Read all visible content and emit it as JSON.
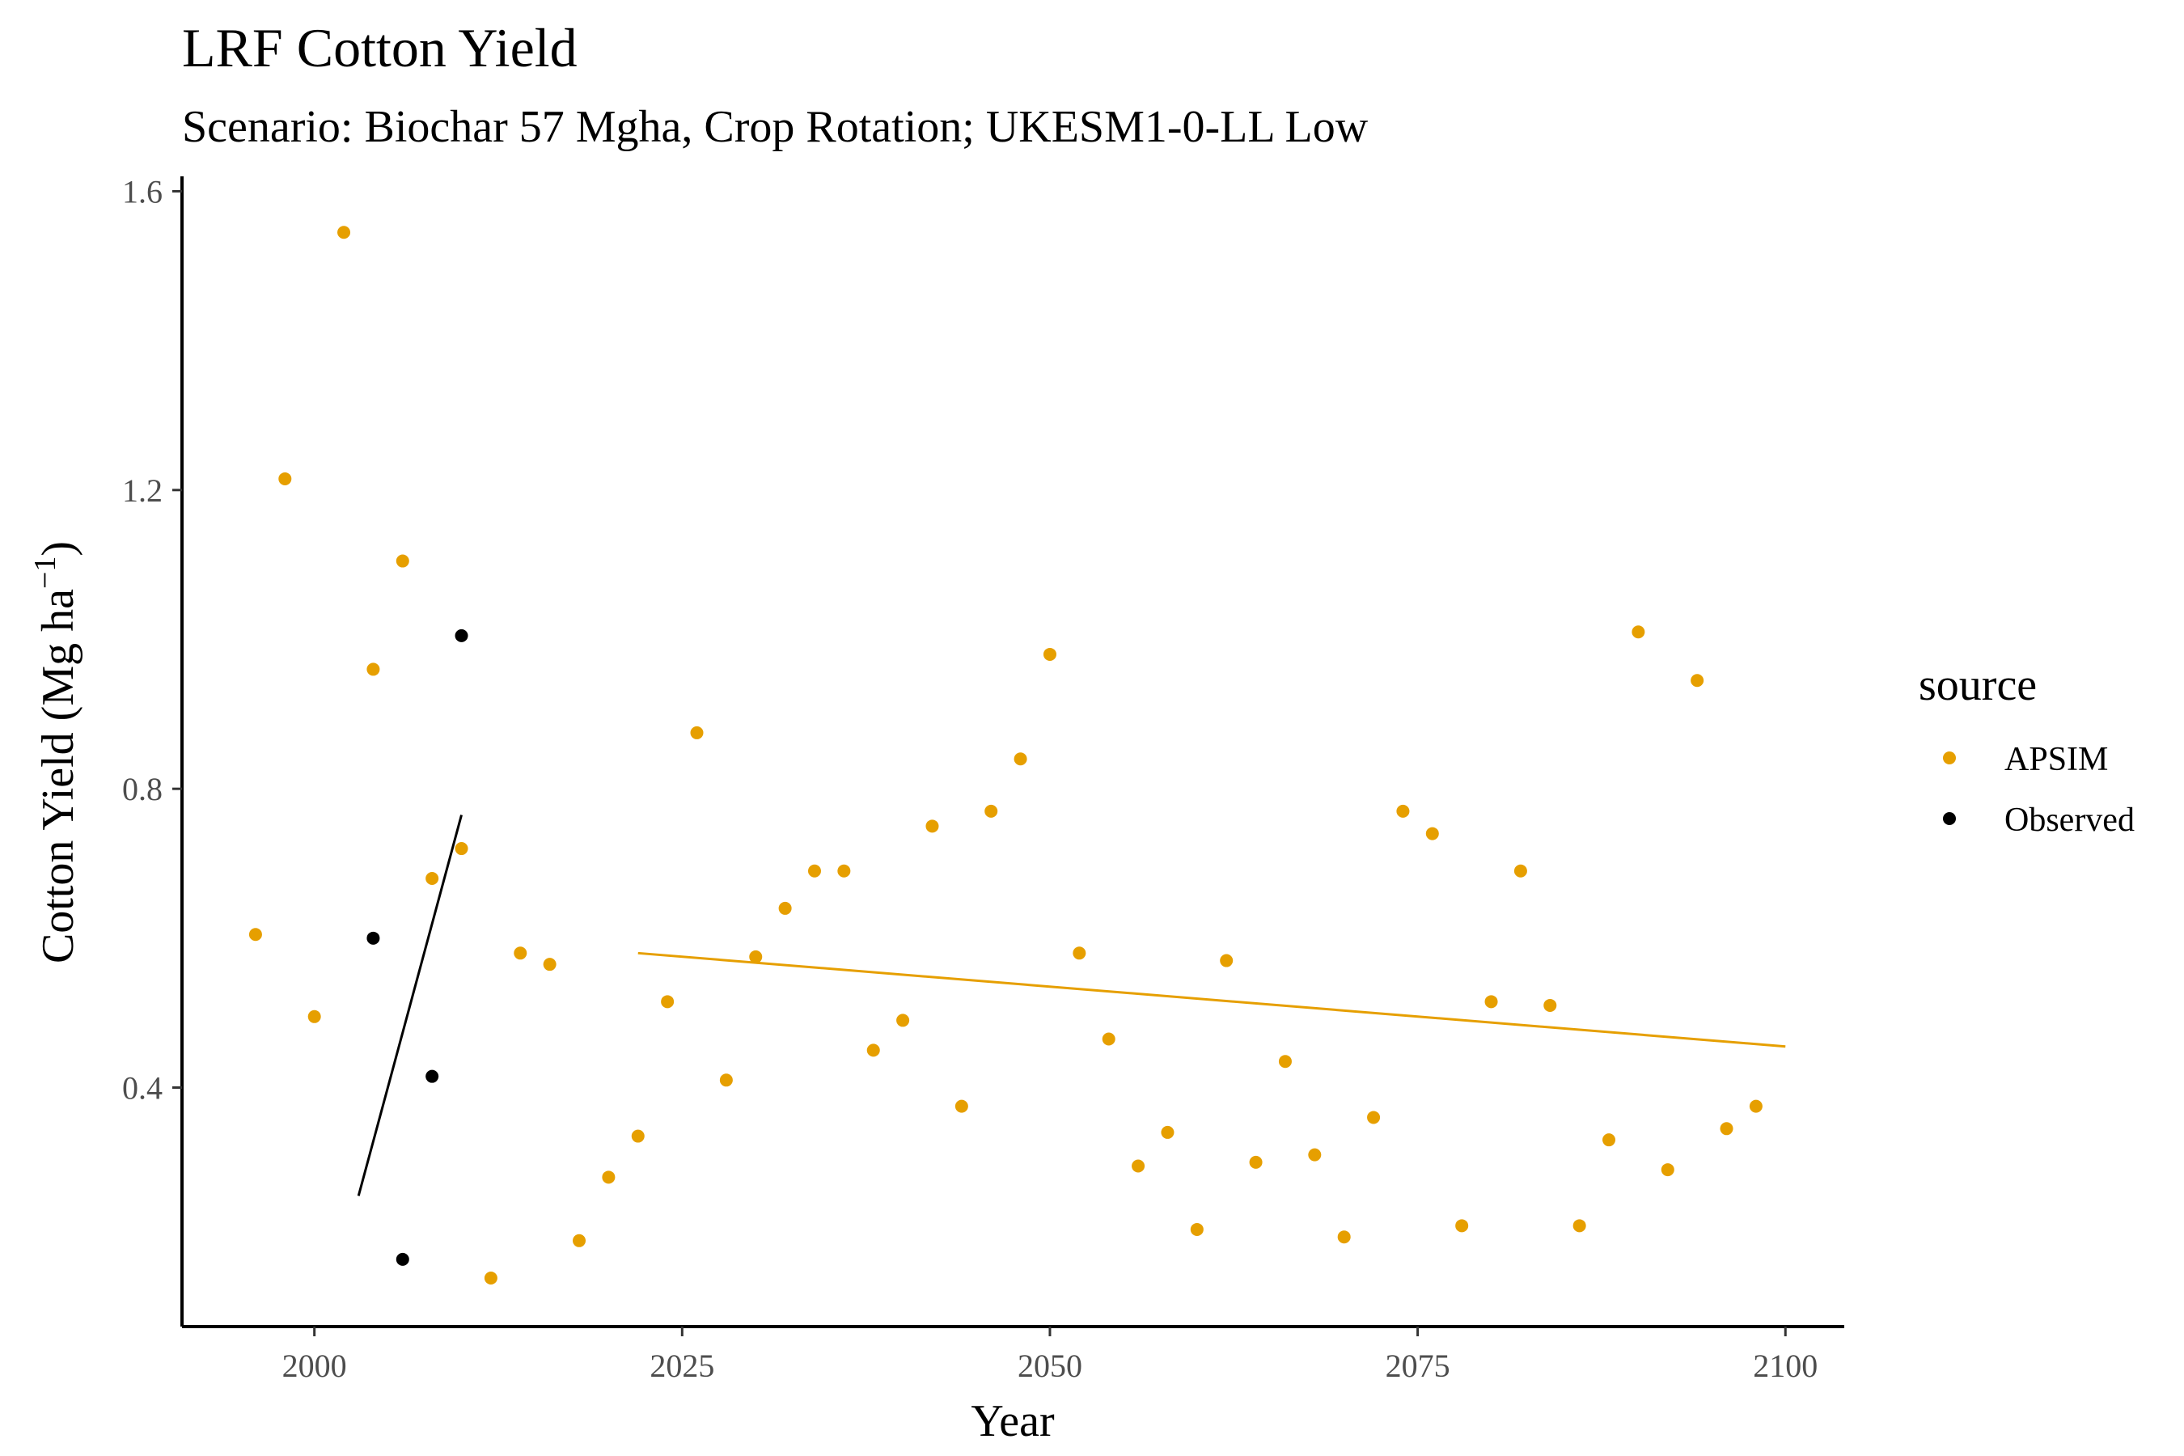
{
  "chart_data": {
    "type": "scatter",
    "title": "LRF Cotton Yield",
    "subtitle": "Scenario: Biochar 57 Mgha, Crop Rotation; UKESM1-0-LL Low",
    "xlabel": "Year",
    "ylabel": "Cotton Yield (Mg ha",
    "ylabel_superscript": "−1",
    "ylabel_close": ")",
    "xlim": [
      1991,
      2104
    ],
    "ylim": [
      0.08,
      1.62
    ],
    "x_ticks": [
      2000,
      2025,
      2050,
      2075,
      2100
    ],
    "x_tick_labels": [
      "2000",
      "2025",
      "2050",
      "2075",
      "2100"
    ],
    "y_ticks": [
      0.4,
      0.8,
      1.2,
      1.6
    ],
    "y_tick_labels": [
      "0.4",
      "0.8",
      "1.2",
      "1.6"
    ],
    "grid": false,
    "legend": {
      "title": "source",
      "placement": "right",
      "entries": [
        {
          "label": "APSIM",
          "color": "#E69F00"
        },
        {
          "label": "Observed",
          "color": "#000000"
        }
      ]
    },
    "series": [
      {
        "name": "APSIM",
        "color": "#E69F00",
        "x": [
          1996,
          1998,
          2000,
          2002,
          2004,
          2006,
          2008,
          2010,
          2012,
          2014,
          2016,
          2018,
          2020,
          2022,
          2024,
          2026,
          2028,
          2030,
          2032,
          2034,
          2036,
          2038,
          2040,
          2042,
          2044,
          2046,
          2048,
          2050,
          2052,
          2054,
          2056,
          2058,
          2060,
          2062,
          2064,
          2066,
          2068,
          2070,
          2072,
          2074,
          2076,
          2078,
          2080,
          2082,
          2084,
          2086,
          2088,
          2090,
          2092,
          2094,
          2096,
          2098
        ],
        "y": [
          0.605,
          1.215,
          0.495,
          1.545,
          0.96,
          1.105,
          0.68,
          0.72,
          0.145,
          0.58,
          0.565,
          0.195,
          0.28,
          0.335,
          0.515,
          0.875,
          0.41,
          0.575,
          0.64,
          0.69,
          0.69,
          0.45,
          0.49,
          0.75,
          0.375,
          0.77,
          0.84,
          0.98,
          0.58,
          0.465,
          0.295,
          0.34,
          0.21,
          0.57,
          0.3,
          0.435,
          0.31,
          0.2,
          0.36,
          0.77,
          0.74,
          0.215,
          0.515,
          0.69,
          0.51,
          0.215,
          0.33,
          1.01,
          0.29,
          0.945,
          0.345,
          0.375
        ]
      },
      {
        "name": "Observed",
        "color": "#000000",
        "x": [
          2004,
          2006,
          2008,
          2010
        ],
        "y": [
          0.6,
          0.17,
          0.415,
          1.005
        ]
      }
    ],
    "trend_lines": [
      {
        "series": "APSIM",
        "color": "#E69F00",
        "x": [
          2022,
          2100
        ],
        "y": [
          0.58,
          0.455
        ]
      },
      {
        "series": "Observed",
        "color": "#000000",
        "x": [
          2003,
          2010
        ],
        "y": [
          0.255,
          0.765
        ]
      }
    ]
  }
}
